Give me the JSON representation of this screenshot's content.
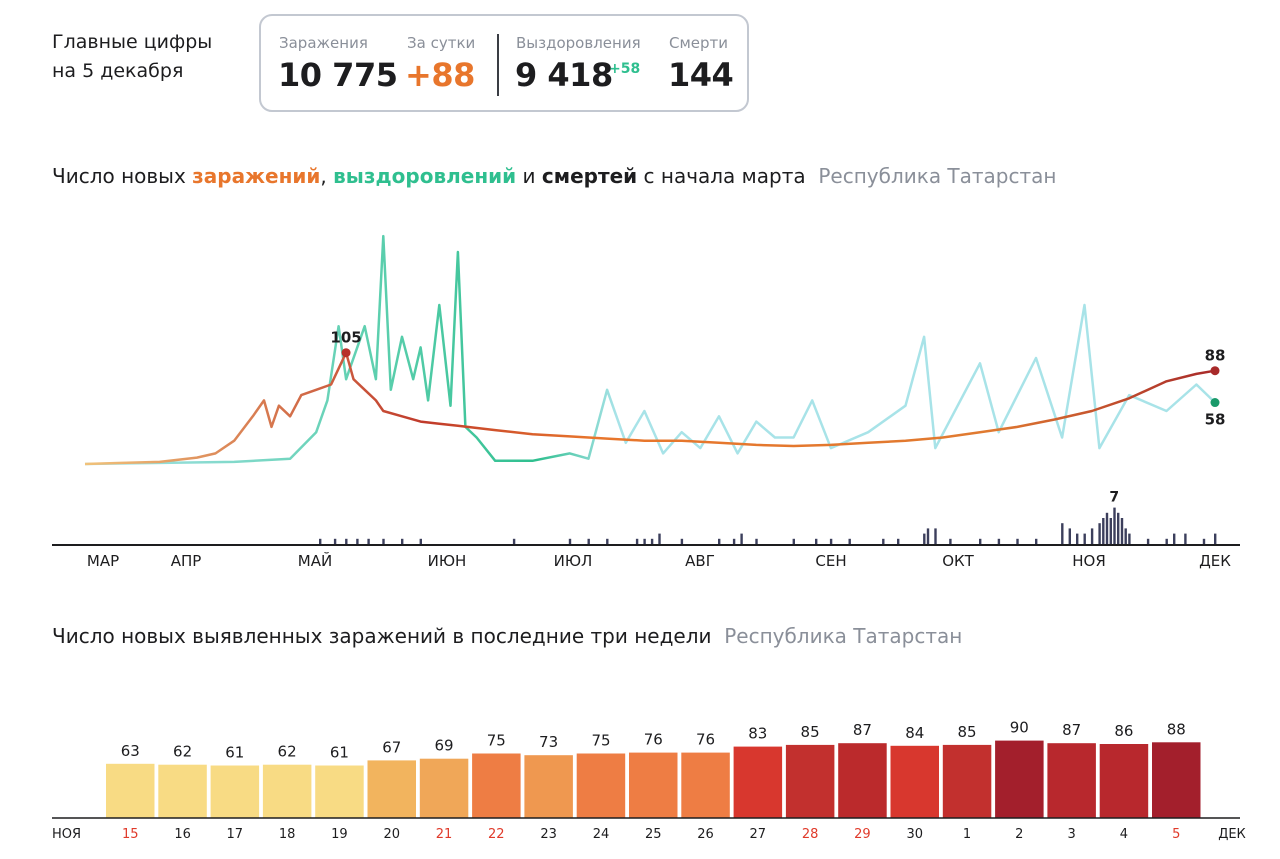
{
  "headline": {
    "line1": "Главные цифры",
    "line2": "на 5 декабря"
  },
  "stats": {
    "infections_label": "Заражения",
    "infections_value": "10 775",
    "daily_label": "За сутки",
    "daily_value": "+88",
    "recoveries_label": "Выздоровления",
    "recoveries_value": "9 418",
    "recoveries_delta": "+58",
    "deaths_label": "Смерти",
    "deaths_value": "144"
  },
  "colors": {
    "infections": "#e8762c",
    "infections_dark": "#b8312a",
    "recoveries": "#2fbf8f",
    "recoveries_light": "#a8e3e8",
    "recoveries_dot": "#1a9a6a",
    "deaths": "#3c3f5c",
    "stat_orange": "#e8762c",
    "stat_green": "#2fbf8f",
    "region_gray": "#8a8f99",
    "weekend_red": "#e03a2a"
  },
  "chart1": {
    "title_pre": "Число новых ",
    "title_infections": "заражений",
    "title_comma": ", ",
    "title_recoveries": "выздоровлений",
    "title_and": " и ",
    "title_deaths": "смертей",
    "title_post": " с начала марта",
    "region": "Республика Татарстан",
    "months": [
      "МАР",
      "АПР",
      "МАЙ",
      "ИЮН",
      "ИЮЛ",
      "АВГ",
      "СЕН",
      "ОКТ",
      "НОЯ",
      "ДЕК"
    ],
    "peak_label": "105",
    "last_infections_label": "88",
    "last_recoveries_label": "58",
    "deaths_peak_label": "7"
  },
  "chart2": {
    "title": "Число новых выявленных заражений в последние три недели",
    "region": "Республика Татарстан",
    "start_month": "НОЯ",
    "end_month": "ДЕК"
  },
  "chart_data": [
    {
      "type": "line",
      "title": "Число новых заражений, выздоровлений и смертей с начала марта",
      "x_range": [
        "2020-03-01",
        "2020-12-05"
      ],
      "series": [
        {
          "name": "заражений",
          "points": [
            [
              0,
              0
            ],
            [
              10,
              1
            ],
            [
              20,
              2
            ],
            [
              25,
              4
            ],
            [
              30,
              6
            ],
            [
              35,
              10
            ],
            [
              40,
              22
            ],
            [
              45,
              45
            ],
            [
              48,
              60
            ],
            [
              50,
              35
            ],
            [
              52,
              55
            ],
            [
              55,
              45
            ],
            [
              58,
              65
            ],
            [
              62,
              70
            ],
            [
              66,
              75
            ],
            [
              70,
              105
            ],
            [
              72,
              80
            ],
            [
              75,
              70
            ],
            [
              78,
              60
            ],
            [
              80,
              50
            ],
            [
              85,
              45
            ],
            [
              90,
              40
            ],
            [
              95,
              38
            ],
            [
              100,
              36
            ],
            [
              110,
              32
            ],
            [
              120,
              28
            ],
            [
              130,
              26
            ],
            [
              140,
              24
            ],
            [
              150,
              22
            ],
            [
              160,
              22
            ],
            [
              170,
              20
            ],
            [
              180,
              18
            ],
            [
              190,
              17
            ],
            [
              200,
              18
            ],
            [
              210,
              20
            ],
            [
              220,
              22
            ],
            [
              230,
              25
            ],
            [
              240,
              30
            ],
            [
              250,
              35
            ],
            [
              260,
              42
            ],
            [
              270,
              50
            ],
            [
              280,
              62
            ],
            [
              290,
              78
            ],
            [
              298,
              85
            ],
            [
              303,
              88
            ]
          ]
        },
        {
          "name": "выздоровлений",
          "points": [
            [
              0,
              0
            ],
            [
              40,
              2
            ],
            [
              55,
              5
            ],
            [
              62,
              30
            ],
            [
              65,
              60
            ],
            [
              68,
              130
            ],
            [
              70,
              80
            ],
            [
              75,
              130
            ],
            [
              78,
              80
            ],
            [
              80,
              215
            ],
            [
              82,
              70
            ],
            [
              85,
              120
            ],
            [
              88,
              80
            ],
            [
              90,
              110
            ],
            [
              92,
              60
            ],
            [
              95,
              150
            ],
            [
              98,
              55
            ],
            [
              100,
              200
            ],
            [
              102,
              35
            ],
            [
              105,
              25
            ],
            [
              110,
              3
            ],
            [
              120,
              3
            ],
            [
              130,
              10
            ],
            [
              135,
              5
            ],
            [
              140,
              70
            ],
            [
              145,
              20
            ],
            [
              150,
              50
            ],
            [
              155,
              10
            ],
            [
              160,
              30
            ],
            [
              165,
              15
            ],
            [
              170,
              45
            ],
            [
              175,
              10
            ],
            [
              180,
              40
            ],
            [
              185,
              25
            ],
            [
              190,
              25
            ],
            [
              195,
              60
            ],
            [
              200,
              15
            ],
            [
              210,
              30
            ],
            [
              220,
              55
            ],
            [
              225,
              120
            ],
            [
              228,
              15
            ],
            [
              240,
              95
            ],
            [
              245,
              30
            ],
            [
              255,
              100
            ],
            [
              262,
              25
            ],
            [
              268,
              150
            ],
            [
              272,
              15
            ],
            [
              280,
              65
            ],
            [
              290,
              50
            ],
            [
              298,
              75
            ],
            [
              303,
              58
            ]
          ]
        },
        {
          "name": "смертей",
          "values_note_peak": 7
        }
      ],
      "labels": {
        "peak_infections": 105,
        "last_infections": 88,
        "last_recoveries": 58,
        "peak_deaths": 7
      },
      "xlabel": "",
      "ylabel": ""
    },
    {
      "type": "bar",
      "title": "Число новых выявленных заражений в последние три недели",
      "categories": [
        "15",
        "16",
        "17",
        "18",
        "19",
        "20",
        "21",
        "22",
        "23",
        "24",
        "25",
        "26",
        "27",
        "28",
        "29",
        "30",
        "1",
        "2",
        "3",
        "4",
        "5"
      ],
      "weekend_categories": [
        "15",
        "21",
        "22",
        "28",
        "29",
        "5"
      ],
      "values": [
        63,
        62,
        61,
        62,
        61,
        67,
        69,
        75,
        73,
        75,
        76,
        76,
        83,
        85,
        87,
        84,
        85,
        90,
        87,
        86,
        88
      ],
      "bar_colors": [
        "#f8db84",
        "#f8db84",
        "#f8db84",
        "#f8db84",
        "#f8db84",
        "#f2b45e",
        "#f0a758",
        "#ee7d44",
        "#ef9850",
        "#ee7d44",
        "#ee7d44",
        "#ee7d44",
        "#d8372e",
        "#c2302e",
        "#bb2a2c",
        "#d8372e",
        "#c2302e",
        "#a31f2c",
        "#b8282d",
        "#b8282d",
        "#a31f2c"
      ],
      "xlabel": "",
      "ylabel": ""
    }
  ]
}
